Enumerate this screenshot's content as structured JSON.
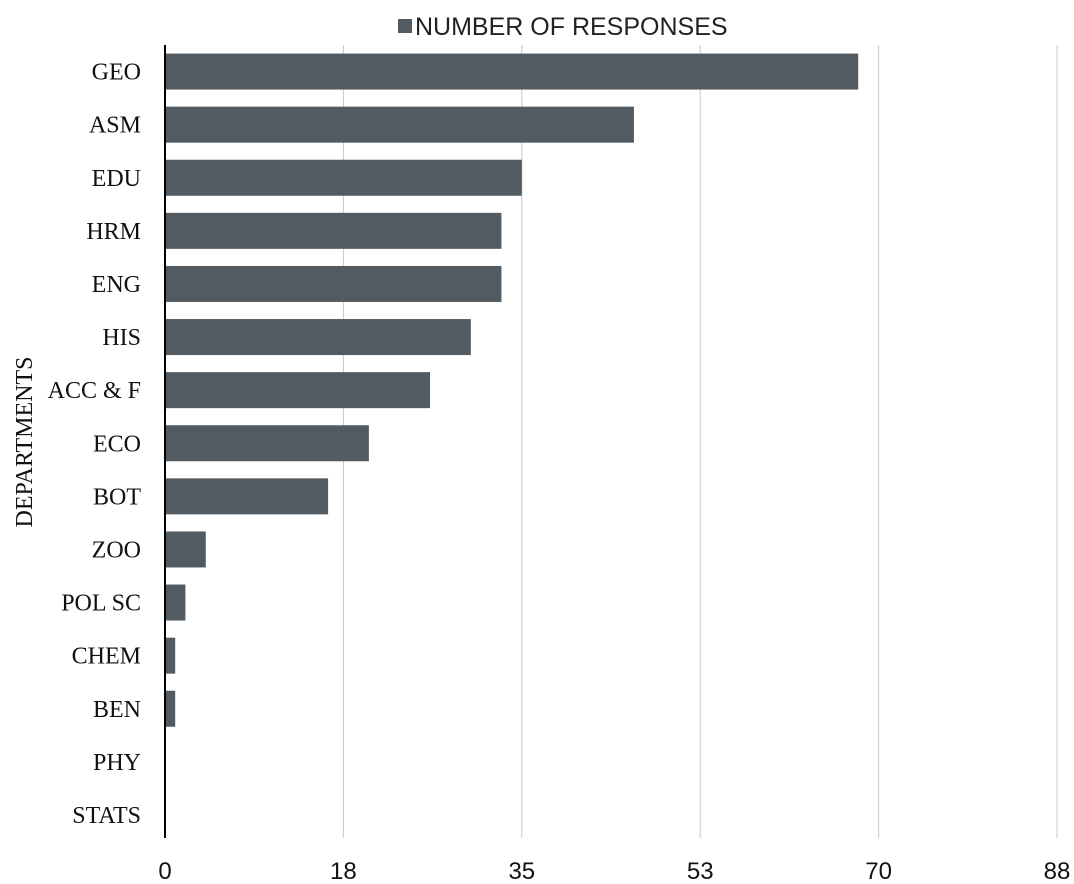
{
  "chart_data": {
    "type": "bar",
    "orientation": "horizontal",
    "categories": [
      "GEO",
      "ASM",
      "EDU",
      "HRM",
      "ENG",
      "HIS",
      "ACC & F",
      "ECO",
      "BOT",
      "ZOO",
      "POL SC",
      "CHEM",
      "BEN",
      "PHY",
      "STATS"
    ],
    "series": [
      {
        "name": "NUMBER OF RESPONSES",
        "values": [
          68,
          46,
          35,
          33,
          33,
          30,
          26,
          20,
          16,
          4,
          2,
          1,
          1,
          0,
          0
        ],
        "color": "#525a62"
      }
    ],
    "x_ticks": [
      "0",
      "18",
      "35",
      "53",
      "70",
      "88"
    ],
    "xlim": [
      0,
      87.5
    ],
    "ylabel": "DEPARTMENTS",
    "xlabel": "",
    "title": "",
    "legend_position": "top-center",
    "grid": "vertical"
  }
}
